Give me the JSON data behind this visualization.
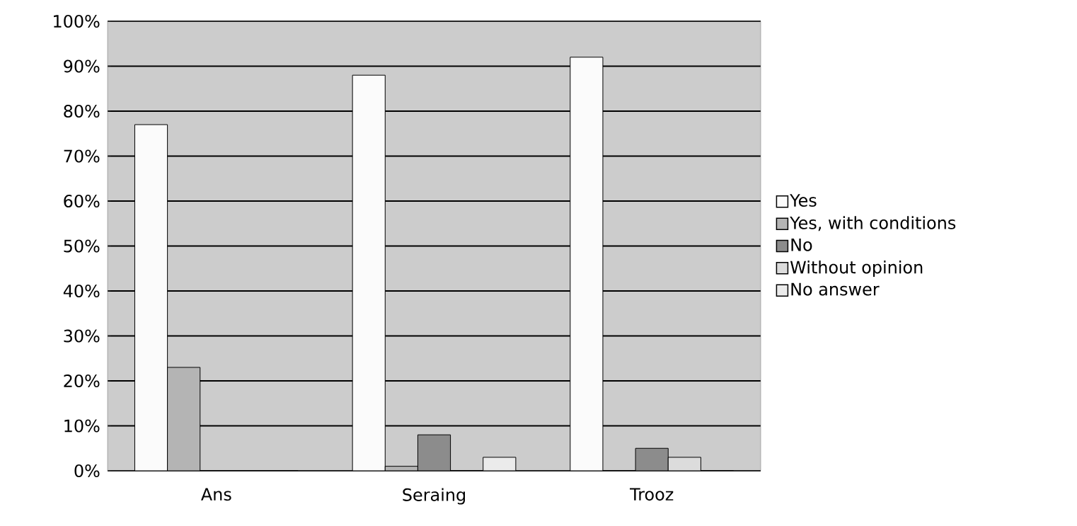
{
  "chart_data": {
    "type": "bar",
    "categories": [
      "Ans",
      "Seraing",
      "Trooz"
    ],
    "series": [
      {
        "name": "Yes",
        "color": "#fbfbfb",
        "values": [
          77,
          88,
          92
        ]
      },
      {
        "name": "Yes, with conditions",
        "color": "#b4b4b4",
        "values": [
          23,
          1,
          0
        ]
      },
      {
        "name": "No",
        "color": "#8c8c8c",
        "values": [
          0,
          8,
          5
        ]
      },
      {
        "name": "Without opinion",
        "color": "#dcdcdc",
        "values": [
          0,
          0,
          3
        ]
      },
      {
        "name": "No answer",
        "color": "#ebebeb",
        "values": [
          0,
          3,
          0
        ]
      }
    ],
    "ylim": [
      0,
      100
    ],
    "yticks": [
      {
        "value": 0,
        "label": "0%"
      },
      {
        "value": 10,
        "label": "10%"
      },
      {
        "value": 20,
        "label": "20%"
      },
      {
        "value": 30,
        "label": "30%"
      },
      {
        "value": 40,
        "label": "40%"
      },
      {
        "value": 50,
        "label": "50%"
      },
      {
        "value": 60,
        "label": "60%"
      },
      {
        "value": 70,
        "label": "70%"
      },
      {
        "value": 80,
        "label": "80%"
      },
      {
        "value": 90,
        "label": "90%"
      },
      {
        "value": 100,
        "label": "100%"
      }
    ],
    "grid": "y",
    "legend": "right"
  }
}
